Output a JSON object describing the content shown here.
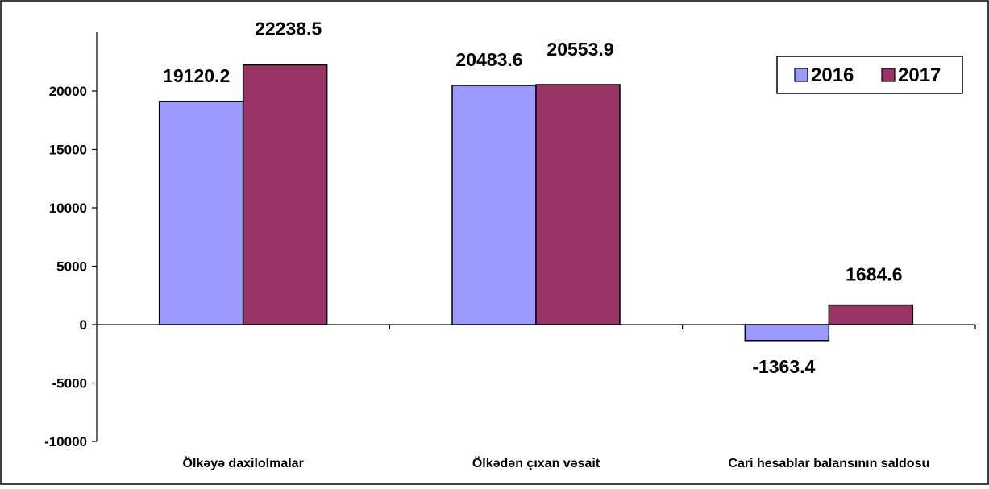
{
  "chart_data": {
    "type": "bar",
    "categories": [
      "Ölkəyə daxilolmalar",
      "Ölkədən çıxan vəsait",
      "Cari hesablar balansının saldosu"
    ],
    "series": [
      {
        "name": "2016",
        "values": [
          19120.2,
          20483.6,
          -1363.4
        ],
        "labels": [
          "19120.2",
          "20483.6",
          "-1363.4"
        ],
        "color": "#9999ff"
      },
      {
        "name": "2017",
        "values": [
          22238.5,
          20553.9,
          1684.6
        ],
        "labels": [
          "22238.5",
          "20553.9",
          "1684.6"
        ],
        "color": "#993366"
      }
    ],
    "ylim": [
      -10000,
      25000
    ],
    "yticks": [
      "20000",
      "15000",
      "10000",
      "5000",
      "0",
      "-5000",
      "-10000"
    ],
    "ytick_values": [
      20000,
      15000,
      10000,
      5000,
      0,
      -5000,
      -10000
    ],
    "grid": false,
    "legend_position": "top-right",
    "title": "",
    "xlabel": "",
    "ylabel": ""
  }
}
